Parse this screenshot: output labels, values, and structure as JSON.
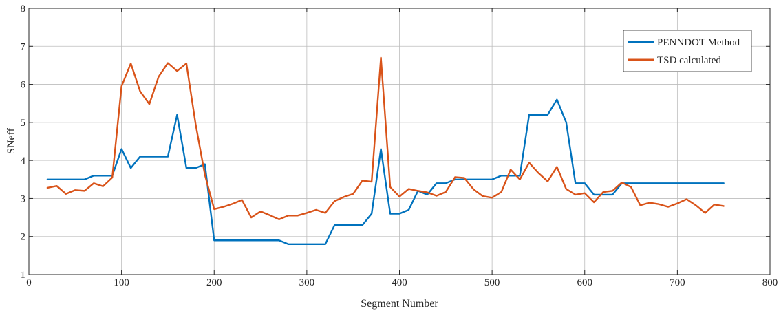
{
  "chart_data": {
    "type": "line",
    "title": "",
    "xlabel": "Segment Number",
    "ylabel": "SNeff",
    "xlim": [
      0,
      800
    ],
    "ylim": [
      1,
      8
    ],
    "xticks": [
      0,
      100,
      200,
      300,
      400,
      500,
      600,
      700,
      800
    ],
    "yticks": [
      1,
      2,
      3,
      4,
      5,
      6,
      7,
      8
    ],
    "grid": true,
    "legend_position": "top-right",
    "series": [
      {
        "name": "PENNDOT Method",
        "color": "#0072BD",
        "x": [
          20,
          30,
          40,
          50,
          60,
          70,
          80,
          90,
          100,
          110,
          120,
          130,
          140,
          150,
          160,
          170,
          180,
          190,
          200,
          210,
          220,
          230,
          240,
          250,
          260,
          270,
          280,
          290,
          300,
          310,
          320,
          330,
          340,
          350,
          360,
          370,
          380,
          390,
          400,
          410,
          420,
          430,
          440,
          450,
          460,
          470,
          480,
          490,
          500,
          510,
          520,
          530,
          540,
          550,
          560,
          570,
          580,
          590,
          600,
          610,
          620,
          630,
          640,
          650,
          660,
          670,
          680,
          690,
          700,
          710,
          720,
          730,
          740,
          750
        ],
        "y": [
          3.5,
          3.5,
          3.5,
          3.5,
          3.5,
          3.6,
          3.6,
          3.6,
          4.3,
          3.8,
          4.1,
          4.1,
          4.1,
          4.1,
          5.2,
          3.8,
          3.8,
          3.9,
          1.9,
          1.9,
          1.9,
          1.9,
          1.9,
          1.9,
          1.9,
          1.9,
          1.8,
          1.8,
          1.8,
          1.8,
          1.8,
          2.3,
          2.3,
          2.3,
          2.3,
          2.6,
          4.3,
          2.6,
          2.6,
          2.7,
          3.2,
          3.1,
          3.4,
          3.4,
          3.5,
          3.5,
          3.5,
          3.5,
          3.5,
          3.6,
          3.6,
          3.6,
          5.2,
          5.2,
          5.2,
          5.6,
          5.0,
          3.4,
          3.4,
          3.1,
          3.1,
          3.1,
          3.4,
          3.4,
          3.4,
          3.4,
          3.4,
          3.4,
          3.4,
          3.4,
          3.4,
          3.4,
          3.4,
          3.4
        ]
      },
      {
        "name": "TSD calculated",
        "color": "#D95319",
        "x": [
          20,
          30,
          40,
          50,
          60,
          70,
          80,
          90,
          100,
          110,
          120,
          130,
          140,
          150,
          160,
          170,
          180,
          190,
          200,
          210,
          220,
          230,
          240,
          250,
          260,
          270,
          280,
          290,
          300,
          310,
          320,
          330,
          340,
          350,
          360,
          370,
          380,
          390,
          400,
          410,
          420,
          430,
          440,
          450,
          460,
          470,
          480,
          490,
          500,
          510,
          520,
          530,
          540,
          550,
          560,
          570,
          580,
          590,
          600,
          610,
          620,
          630,
          640,
          650,
          660,
          670,
          680,
          690,
          700,
          710,
          720,
          730,
          740,
          750
        ],
        "y": [
          3.28,
          3.33,
          3.12,
          3.22,
          3.2,
          3.4,
          3.32,
          3.55,
          5.95,
          6.55,
          5.82,
          5.48,
          6.2,
          6.56,
          6.35,
          6.55,
          4.95,
          3.62,
          2.72,
          2.78,
          2.86,
          2.96,
          2.5,
          2.66,
          2.56,
          2.45,
          2.55,
          2.55,
          2.62,
          2.7,
          2.62,
          2.93,
          3.04,
          3.12,
          3.47,
          3.44,
          6.7,
          3.3,
          3.05,
          3.25,
          3.2,
          3.16,
          3.07,
          3.17,
          3.56,
          3.54,
          3.24,
          3.06,
          3.02,
          3.17,
          3.76,
          3.5,
          3.94,
          3.67,
          3.45,
          3.83,
          3.25,
          3.1,
          3.14,
          2.9,
          3.17,
          3.2,
          3.42,
          3.3,
          2.82,
          2.89,
          2.85,
          2.78,
          2.87,
          2.98,
          2.82,
          2.62,
          2.84,
          2.8
        ]
      }
    ]
  }
}
